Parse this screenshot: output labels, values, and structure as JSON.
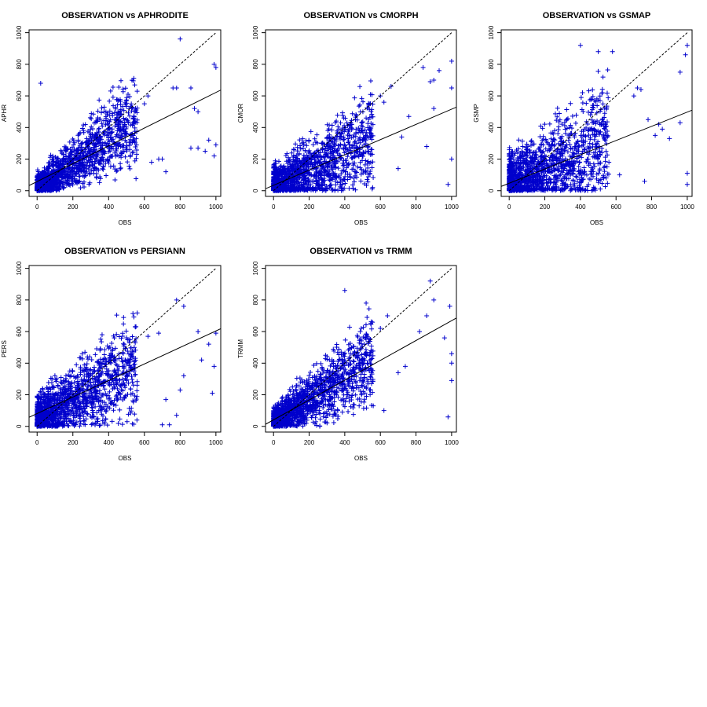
{
  "chart_data": [
    {
      "type": "scatter",
      "title": "OBSERVATION vs APHRODITE",
      "xlabel": "OBS",
      "ylabel": "APHR",
      "xlim": [
        0,
        1000
      ],
      "ylim": [
        0,
        1000
      ],
      "xticks": [
        "0",
        "200",
        "400",
        "600",
        "800",
        "1000"
      ],
      "yticks": [
        "0",
        "200",
        "400",
        "600",
        "800",
        "1000"
      ],
      "marker": "+",
      "point_color": "#0000cc",
      "cloud": {
        "n": 1500,
        "slope": 0.8,
        "offset": 10,
        "spread": 55
      },
      "outliers": [
        [
          20,
          680
        ],
        [
          800,
          960
        ],
        [
          990,
          800
        ],
        [
          1000,
          780
        ],
        [
          960,
          320
        ],
        [
          1000,
          290
        ],
        [
          940,
          250
        ],
        [
          900,
          270
        ],
        [
          990,
          220
        ],
        [
          900,
          500
        ],
        [
          880,
          520
        ],
        [
          780,
          650
        ],
        [
          760,
          650
        ],
        [
          700,
          200
        ],
        [
          720,
          120
        ],
        [
          680,
          200
        ],
        [
          640,
          180
        ],
        [
          860,
          270
        ],
        [
          600,
          550
        ],
        [
          620,
          600
        ],
        [
          860,
          650
        ]
      ],
      "series": [
        {
          "name": "",
          "style": "dashed",
          "points": [
            [
              0,
              0
            ],
            [
              1000,
              1000
            ]
          ]
        },
        {
          "name": "",
          "style": "solid",
          "points": [
            [
              -50,
              30
            ],
            [
              1050,
              650
            ]
          ]
        }
      ]
    },
    {
      "type": "scatter",
      "title": "OBSERVATION vs CMORPH",
      "xlabel": "OBS",
      "ylabel": "CMOR",
      "xlim": [
        0,
        1000
      ],
      "ylim": [
        0,
        1000
      ],
      "xticks": [
        "0",
        "200",
        "400",
        "600",
        "800",
        "1000"
      ],
      "yticks": [
        "0",
        "200",
        "400",
        "600",
        "800",
        "1000"
      ],
      "marker": "+",
      "point_color": "#0000cc",
      "cloud": {
        "n": 1500,
        "slope": 0.55,
        "offset": 15,
        "spread": 80
      },
      "outliers": [
        [
          1000,
          820
        ],
        [
          930,
          760
        ],
        [
          900,
          700
        ],
        [
          880,
          690
        ],
        [
          1000,
          650
        ],
        [
          980,
          40
        ],
        [
          1000,
          200
        ],
        [
          840,
          780
        ],
        [
          860,
          280
        ],
        [
          900,
          520
        ],
        [
          760,
          470
        ],
        [
          700,
          140
        ],
        [
          720,
          340
        ],
        [
          600,
          600
        ],
        [
          660,
          660
        ],
        [
          620,
          560
        ],
        [
          460,
          450
        ],
        [
          520,
          460
        ],
        [
          440,
          420
        ]
      ],
      "series": [
        {
          "name": "",
          "style": "dashed",
          "points": [
            [
              0,
              0
            ],
            [
              1000,
              1000
            ]
          ]
        },
        {
          "name": "",
          "style": "solid",
          "points": [
            [
              -50,
              10
            ],
            [
              1050,
              540
            ]
          ]
        }
      ]
    },
    {
      "type": "scatter",
      "title": "OBSERVATION vs GSMAP",
      "xlabel": "OBS",
      "ylabel": "GSMP",
      "xlim": [
        0,
        1000
      ],
      "ylim": [
        0,
        1000
      ],
      "xticks": [
        "0",
        "200",
        "400",
        "600",
        "800",
        "1000"
      ],
      "yticks": [
        "0",
        "200",
        "400",
        "600",
        "800",
        "1000"
      ],
      "marker": "+",
      "point_color": "#0000cc",
      "cloud": {
        "n": 1500,
        "slope": 0.5,
        "offset": 30,
        "spread": 110
      },
      "outliers": [
        [
          400,
          920
        ],
        [
          500,
          880
        ],
        [
          580,
          880
        ],
        [
          1000,
          920
        ],
        [
          990,
          860
        ],
        [
          960,
          750
        ],
        [
          1000,
          40
        ],
        [
          1000,
          110
        ],
        [
          860,
          390
        ],
        [
          840,
          420
        ],
        [
          780,
          450
        ],
        [
          820,
          350
        ],
        [
          720,
          650
        ],
        [
          700,
          600
        ],
        [
          740,
          640
        ],
        [
          960,
          430
        ],
        [
          900,
          330
        ],
        [
          560,
          180
        ],
        [
          620,
          100
        ],
        [
          760,
          60
        ]
      ],
      "series": [
        {
          "name": "",
          "style": "dashed",
          "points": [
            [
              0,
              0
            ],
            [
              1000,
              1000
            ]
          ]
        },
        {
          "name": "",
          "style": "solid",
          "points": [
            [
              -50,
              25
            ],
            [
              1050,
              520
            ]
          ]
        }
      ]
    },
    {
      "type": "scatter",
      "title": "OBSERVATION vs PERSIANN",
      "xlabel": "OBS",
      "ylabel": "PERS",
      "xlim": [
        0,
        1000
      ],
      "ylim": [
        0,
        1000
      ],
      "xticks": [
        "0",
        "200",
        "400",
        "600",
        "800",
        "1000"
      ],
      "yticks": [
        "0",
        "200",
        "400",
        "600",
        "800",
        "1000"
      ],
      "marker": "+",
      "point_color": "#0000cc",
      "cloud": {
        "n": 1500,
        "slope": 0.6,
        "offset": 40,
        "spread": 85
      },
      "outliers": [
        [
          900,
          600
        ],
        [
          1000,
          590
        ],
        [
          780,
          800
        ],
        [
          820,
          760
        ],
        [
          920,
          420
        ],
        [
          990,
          380
        ],
        [
          980,
          210
        ],
        [
          720,
          170
        ],
        [
          780,
          70
        ],
        [
          740,
          10
        ],
        [
          700,
          10
        ],
        [
          800,
          230
        ],
        [
          620,
          570
        ],
        [
          680,
          590
        ],
        [
          820,
          320
        ],
        [
          960,
          520
        ]
      ],
      "series": [
        {
          "name": "",
          "style": "dashed",
          "points": [
            [
              0,
              0
            ],
            [
              1000,
              1000
            ]
          ]
        },
        {
          "name": "",
          "style": "solid",
          "points": [
            [
              -50,
              55
            ],
            [
              1050,
              630
            ]
          ]
        }
      ]
    },
    {
      "type": "scatter",
      "title": "OBSERVATION vs TRMM",
      "xlabel": "OBS",
      "ylabel": "TRMM",
      "xlim": [
        0,
        1000
      ],
      "ylim": [
        0,
        1000
      ],
      "xticks": [
        "0",
        "200",
        "400",
        "600",
        "800",
        "1000"
      ],
      "yticks": [
        "0",
        "200",
        "400",
        "600",
        "800",
        "1000"
      ],
      "marker": "+",
      "point_color": "#0000cc",
      "cloud": {
        "n": 1500,
        "slope": 0.75,
        "offset": 15,
        "spread": 55
      },
      "outliers": [
        [
          400,
          860
        ],
        [
          880,
          920
        ],
        [
          900,
          800
        ],
        [
          990,
          760
        ],
        [
          1000,
          460
        ],
        [
          1000,
          400
        ],
        [
          980,
          60
        ],
        [
          1000,
          290
        ],
        [
          960,
          560
        ],
        [
          860,
          700
        ],
        [
          820,
          600
        ],
        [
          740,
          380
        ],
        [
          700,
          340
        ],
        [
          600,
          620
        ],
        [
          640,
          700
        ],
        [
          520,
          780
        ],
        [
          560,
          130
        ],
        [
          620,
          100
        ]
      ],
      "series": [
        {
          "name": "",
          "style": "dashed",
          "points": [
            [
              0,
              0
            ],
            [
              1000,
              1000
            ]
          ]
        },
        {
          "name": "",
          "style": "solid",
          "points": [
            [
              -50,
              10
            ],
            [
              1050,
              700
            ]
          ]
        }
      ]
    }
  ]
}
